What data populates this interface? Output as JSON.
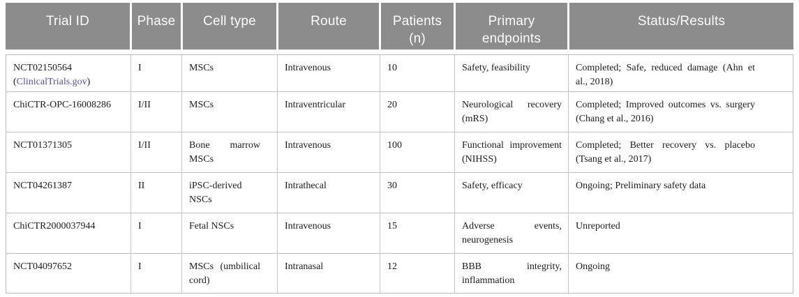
{
  "table": {
    "columns": [
      "Trial ID",
      "Phase",
      "Cell type",
      "Route",
      "Patients\n(n)",
      "Primary\nendpoints",
      "Status/Results"
    ],
    "link_paren_open": "(",
    "link_paren_close": ")",
    "rows": [
      {
        "trial_id": "NCT02150564",
        "trial_link": "ClinicalTrials.gov",
        "phase": "I",
        "cell_type": "MSCs",
        "route": "Intravenous",
        "patients": "10",
        "endpoints": "Safety, feasibility",
        "status": "Completed; Safe, reduced damage (Ahn et al., 2018)"
      },
      {
        "trial_id": "ChiCTR-OPC-16008286",
        "phase": "I/II",
        "cell_type": "MSCs",
        "route": "Intraventricular",
        "patients": "20",
        "endpoints": "Neurological recovery (mRS)",
        "status": "Completed; Improved outcomes vs. surgery (Chang et al., 2016)"
      },
      {
        "trial_id": "NCT01371305",
        "phase": "I/II",
        "cell_type": "Bone marrow MSCs",
        "route": "Intravenous",
        "patients": "100",
        "endpoints": "Functional improvement (NIHSS)",
        "status": "Completed; Better recovery vs. placebo (Tsang et al., 2017)"
      },
      {
        "trial_id": "NCT04261387",
        "phase": "II",
        "cell_type": "iPSC-derived NSCs",
        "route": "Intrathecal",
        "patients": "30",
        "endpoints": "Safety, efficacy",
        "status": "Ongoing; Preliminary safety data"
      },
      {
        "trial_id": "ChiCTR2000037944",
        "phase": "I",
        "cell_type": "Fetal NSCs",
        "route": "Intravenous",
        "patients": "15",
        "endpoints": "Adverse events, neurogenesis",
        "status": "Unreported"
      },
      {
        "trial_id": "NCT04097652",
        "phase": "I",
        "cell_type": "MSCs (umbilical cord)",
        "route": "Intranasal",
        "patients": "12",
        "endpoints": "BBB integrity, inflammation",
        "status": "Ongoing"
      }
    ],
    "colors": {
      "header_bg": "#8c8c8c",
      "header_text": "#fdfdfd",
      "link": "#5550a5",
      "border": "#bcbcbc",
      "body_text": "#1c1c1c"
    }
  }
}
